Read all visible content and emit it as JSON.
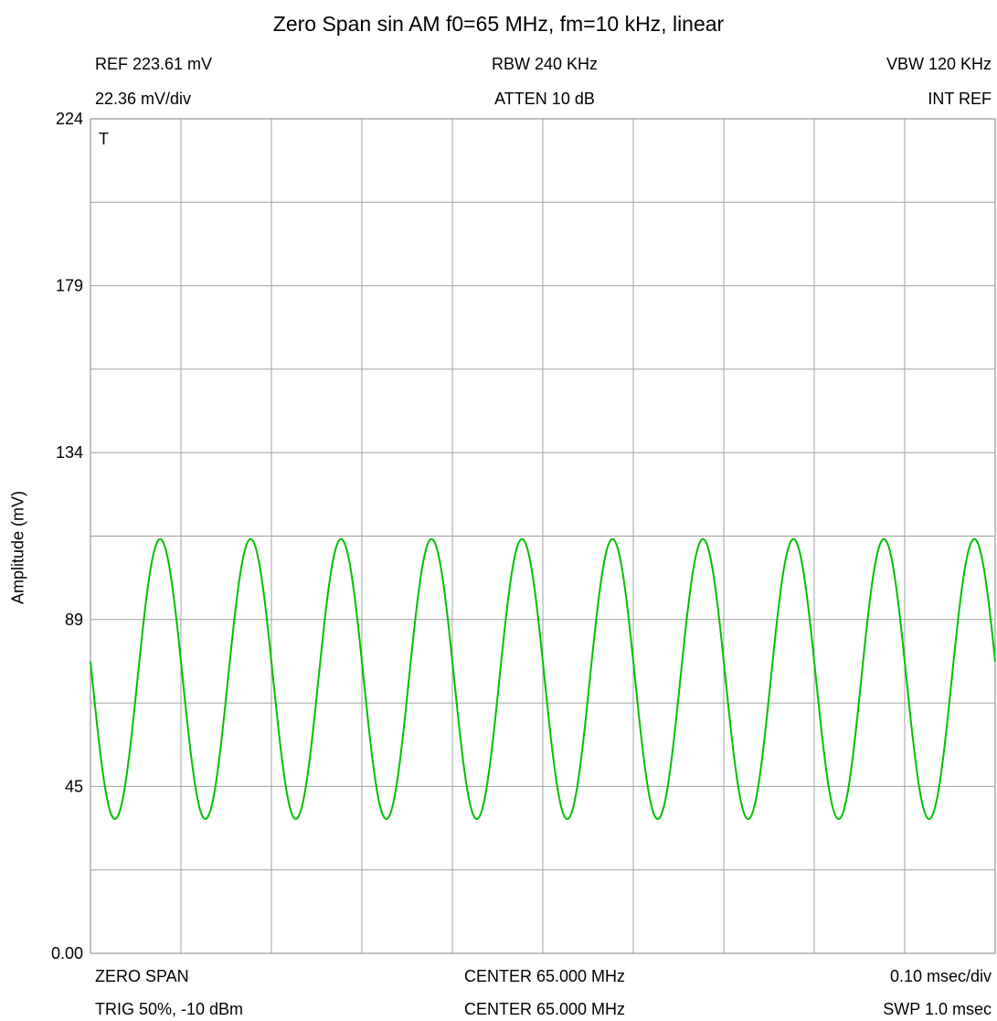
{
  "chart_data": {
    "type": "line",
    "title": "Zero Span sin AM f0=65 MHz, fm=10 kHz, linear",
    "ylabel": "Amplitude (mV)",
    "xlabel": "",
    "ylim": [
      0,
      223.61
    ],
    "xlim": [
      0,
      1.0
    ],
    "x_unit": "msec",
    "y_ticks": [
      "224",
      "179",
      "134",
      "89",
      "45",
      "0.00"
    ],
    "y_tick_values": [
      223.61,
      178.89,
      134.17,
      89.44,
      44.72,
      0
    ],
    "grid": true,
    "divisions": {
      "x": 10,
      "y": 10
    },
    "trigger_marker": "T",
    "series": [
      {
        "color": "#00c000",
        "model": "sine",
        "x_start": 0,
        "x_end": 1.0,
        "frequency_khz": 10,
        "mean_mv": 73.5,
        "amplitude_mv": 37.5,
        "start_value_mv": 81.5,
        "first_min_x_msec": 0.027
      }
    ],
    "annotations": {
      "top_left_1": "REF 223.61 mV",
      "top_left_2": "22.36 mV/div",
      "top_center_1": "RBW 240 KHz",
      "top_center_2": "ATTEN 10 dB",
      "top_right_1": "VBW 120 KHz",
      "top_right_2": "INT REF",
      "bottom_left_1": "ZERO SPAN",
      "bottom_left_2": "TRIG 50%, -10 dBm",
      "bottom_center_1": "CENTER 65.000 MHz",
      "bottom_center_2": "CENTER 65.000 MHz",
      "bottom_right_1": "0.10 msec/div",
      "bottom_right_2": "SWP 1.0 msec"
    },
    "colors": {
      "grid": "#a0a0a0",
      "trace": "#00c000",
      "frame": "#808080"
    }
  }
}
